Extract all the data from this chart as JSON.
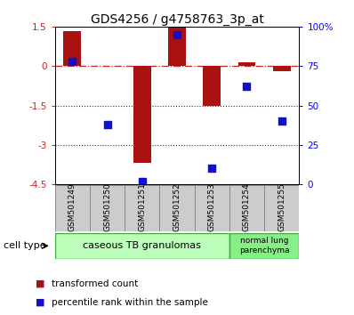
{
  "title": "GDS4256 / g4758763_3p_at",
  "samples": [
    "GSM501249",
    "GSM501250",
    "GSM501251",
    "GSM501252",
    "GSM501253",
    "GSM501254",
    "GSM501255"
  ],
  "transformed_count": [
    1.35,
    0.0,
    -3.7,
    1.5,
    -1.5,
    0.15,
    -0.2
  ],
  "percentile_rank_pct": [
    78,
    38,
    2,
    95,
    10,
    62,
    40
  ],
  "ylim_left": [
    -4.5,
    1.5
  ],
  "ylim_right": [
    0,
    100
  ],
  "yticks_left": [
    1.5,
    0,
    -1.5,
    -3,
    -4.5
  ],
  "ytick_labels_left": [
    "1.5",
    "0",
    "-1.5",
    "-3",
    "-4.5"
  ],
  "yticks_right": [
    100,
    75,
    50,
    25,
    0
  ],
  "ytick_labels_right": [
    "100%",
    "75",
    "50",
    "25",
    "0"
  ],
  "bar_color": "#aa1111",
  "dot_color": "#1111cc",
  "zero_line_color": "#cc2222",
  "dotted_line_color": "#333333",
  "legend_bar_label": "transformed count",
  "legend_dot_label": "percentile rank within the sample",
  "bar_width": 0.5,
  "dot_size": 30,
  "background_color": "#ffffff",
  "tick_area_bg": "#cccccc",
  "cell_type_label": "cell type",
  "ct1_label": "caseous TB granulomas",
  "ct1_color": "#bbffbb",
  "ct1_edge": "#44aa44",
  "ct2_label": "normal lung\nparenchyma",
  "ct2_color": "#88ee88",
  "ct2_edge": "#44aa44"
}
